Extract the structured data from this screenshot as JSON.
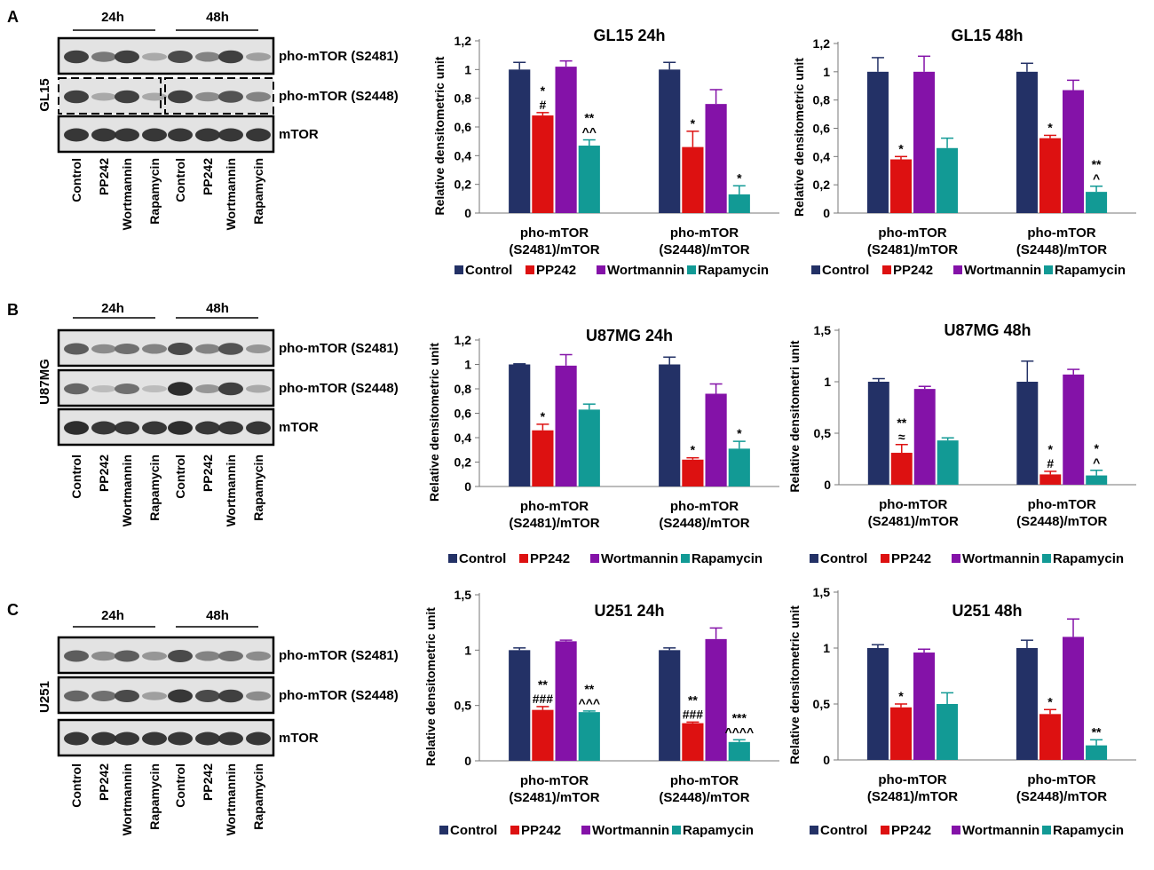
{
  "colors": {
    "Control": "#233166",
    "PP242": "#dd1111",
    "Wortmannin": "#8412a8",
    "Rapamycin": "#129a95"
  },
  "panels": [
    {
      "letter": "A",
      "cell_line": "GL15",
      "blot": {
        "times": [
          "24h",
          "48h"
        ],
        "bands": [
          "pho-mTOR (S2481)",
          "pho-mTOR (S2448)",
          "mTOR"
        ],
        "lanes": [
          "Control",
          "PP242",
          "Wortmannin",
          "Rapamycin",
          "Control",
          "PP242",
          "Wortmannin",
          "Rapamycin"
        ],
        "intensity": [
          [
            0.85,
            0.55,
            0.85,
            0.3,
            0.8,
            0.5,
            0.85,
            0.35
          ],
          [
            0.85,
            0.3,
            0.85,
            0.3,
            0.85,
            0.45,
            0.75,
            0.5
          ],
          [
            0.9,
            0.9,
            0.9,
            0.9,
            0.9,
            0.9,
            0.9,
            0.9
          ]
        ]
      }
    },
    {
      "letter": "B",
      "cell_line": "U87MG",
      "blot": {
        "times": [
          "24h",
          "48h"
        ],
        "bands": [
          "pho-mTOR (S2481)",
          "pho-mTOR (S2448)",
          "mTOR"
        ],
        "lanes": [
          "Control",
          "PP242",
          "Wortmannin",
          "Rapamycin",
          "Control",
          "PP242",
          "Wortmannin",
          "Rapamycin"
        ],
        "intensity": [
          [
            0.7,
            0.45,
            0.6,
            0.5,
            0.8,
            0.5,
            0.75,
            0.4
          ],
          [
            0.65,
            0.2,
            0.6,
            0.2,
            0.95,
            0.4,
            0.85,
            0.3
          ],
          [
            0.95,
            0.9,
            0.9,
            0.9,
            0.95,
            0.9,
            0.9,
            0.9
          ]
        ]
      }
    },
    {
      "letter": "C",
      "cell_line": "U251",
      "blot": {
        "times": [
          "24h",
          "48h"
        ],
        "bands": [
          "pho-mTOR (S2481)",
          "pho-mTOR (S2448)",
          "mTOR"
        ],
        "lanes": [
          "Control",
          "PP242",
          "Wortmannin",
          "Rapamycin",
          "Control",
          "PP242",
          "Wortmannin",
          "Rapamycin"
        ],
        "intensity": [
          [
            0.7,
            0.45,
            0.7,
            0.4,
            0.8,
            0.5,
            0.6,
            0.45
          ],
          [
            0.65,
            0.6,
            0.8,
            0.35,
            0.9,
            0.8,
            0.85,
            0.45
          ],
          [
            0.9,
            0.9,
            0.9,
            0.9,
            0.9,
            0.9,
            0.9,
            0.9
          ]
        ]
      }
    }
  ],
  "chart_data": [
    {
      "type": "bar",
      "title": "GL15 24h",
      "ylabel": "Relative densitometric unit",
      "categories": [
        "pho-mTOR\n(S2481)/mTOR",
        "pho-mTOR\n(S2448)/mTOR"
      ],
      "ylim": [
        0,
        1.2
      ],
      "ticks": [
        0,
        0.2,
        0.4,
        0.6,
        0.8,
        1,
        1.2
      ],
      "tick_labels": [
        "0",
        "0,2",
        "0,4",
        "0,6",
        "0,8",
        "1",
        "1,2"
      ],
      "series": [
        {
          "name": "Control",
          "values": [
            1.0,
            1.0
          ],
          "errors": [
            0.05,
            0.05
          ]
        },
        {
          "name": "PP242",
          "values": [
            0.68,
            0.46
          ],
          "errors": [
            0.02,
            0.11
          ]
        },
        {
          "name": "Wortmannin",
          "values": [
            1.02,
            0.76
          ],
          "errors": [
            0.04,
            0.1
          ]
        },
        {
          "name": "Rapamycin",
          "values": [
            0.47,
            0.13
          ],
          "errors": [
            0.04,
            0.06
          ]
        }
      ],
      "annotations": [
        {
          "group": 0,
          "series": 1,
          "text": [
            "*",
            "#"
          ]
        },
        {
          "group": 0,
          "series": 3,
          "text": [
            "**",
            "^^"
          ]
        },
        {
          "group": 1,
          "series": 1,
          "text": [
            "*"
          ]
        },
        {
          "group": 1,
          "series": 3,
          "text": [
            "*"
          ]
        }
      ],
      "legend": [
        "Control",
        "PP242",
        "Wortmannin",
        "Rapamycin"
      ]
    },
    {
      "type": "bar",
      "title": "GL15 48h",
      "ylabel": "Relative densitometric unit",
      "categories": [
        "pho-mTOR\n(S2481)/mTOR",
        "pho-mTOR\n(S2448)/mTOR"
      ],
      "ylim": [
        0,
        1.2
      ],
      "ticks": [
        0,
        0.2,
        0.4,
        0.6,
        0.8,
        1,
        1.2
      ],
      "tick_labels": [
        "0",
        "0,2",
        "0,4",
        "0,6",
        "0,8",
        "1",
        "1,2"
      ],
      "series": [
        {
          "name": "Control",
          "values": [
            1.0,
            1.0
          ],
          "errors": [
            0.1,
            0.06
          ]
        },
        {
          "name": "PP242",
          "values": [
            0.38,
            0.53
          ],
          "errors": [
            0.02,
            0.02
          ]
        },
        {
          "name": "Wortmannin",
          "values": [
            1.0,
            0.87
          ],
          "errors": [
            0.11,
            0.07
          ]
        },
        {
          "name": "Rapamycin",
          "values": [
            0.46,
            0.15
          ],
          "errors": [
            0.07,
            0.04
          ]
        }
      ],
      "annotations": [
        {
          "group": 0,
          "series": 1,
          "text": [
            "*"
          ]
        },
        {
          "group": 1,
          "series": 1,
          "text": [
            "*"
          ]
        },
        {
          "group": 1,
          "series": 3,
          "text": [
            "**",
            "^"
          ]
        }
      ],
      "legend": [
        "Control",
        "PP242",
        "Wortmannin",
        "Rapamycin"
      ]
    },
    {
      "type": "bar",
      "title": "U87MG 24h",
      "ylabel": "Relative densitometric unit",
      "categories": [
        "pho-mTOR\n(S2481)/mTOR",
        "pho-mTOR\n(S2448)/mTOR"
      ],
      "ylim": [
        0,
        1.2
      ],
      "ticks": [
        0,
        0.2,
        0.4,
        0.6,
        0.8,
        1,
        1.2
      ],
      "tick_labels": [
        "0",
        "0,2",
        "0,4",
        "0,6",
        "0,8",
        "1",
        "1,2"
      ],
      "series": [
        {
          "name": "Control",
          "values": [
            1.0,
            1.0
          ],
          "errors": [
            0.005,
            0.06
          ]
        },
        {
          "name": "PP242",
          "values": [
            0.46,
            0.22
          ],
          "errors": [
            0.05,
            0.015
          ]
        },
        {
          "name": "Wortmannin",
          "values": [
            0.99,
            0.76
          ],
          "errors": [
            0.09,
            0.08
          ]
        },
        {
          "name": "Rapamycin",
          "values": [
            0.63,
            0.31
          ],
          "errors": [
            0.045,
            0.06
          ]
        }
      ],
      "annotations": [
        {
          "group": 0,
          "series": 1,
          "text": [
            "*"
          ]
        },
        {
          "group": 1,
          "series": 1,
          "text": [
            "*"
          ]
        },
        {
          "group": 1,
          "series": 3,
          "text": [
            "*"
          ]
        }
      ],
      "legend": [
        "Control",
        "PP242",
        "Wortmannin",
        "Rapamycin"
      ]
    },
    {
      "type": "bar",
      "title": "U87MG 48h",
      "ylabel": "Relative densitometri unit",
      "categories": [
        "pho-mTOR\n(S2481)/mTOR",
        "pho-mTOR\n(S2448)/mTOR"
      ],
      "ylim": [
        0,
        1.5
      ],
      "ticks": [
        0,
        0.5,
        1,
        1.5
      ],
      "tick_labels": [
        "0",
        "0,5",
        "1",
        "1,5"
      ],
      "series": [
        {
          "name": "Control",
          "values": [
            1.0,
            1.0
          ],
          "errors": [
            0.03,
            0.2
          ]
        },
        {
          "name": "PP242",
          "values": [
            0.31,
            0.1
          ],
          "errors": [
            0.08,
            0.03
          ]
        },
        {
          "name": "Wortmannin",
          "values": [
            0.93,
            1.07
          ],
          "errors": [
            0.025,
            0.05
          ]
        },
        {
          "name": "Rapamycin",
          "values": [
            0.43,
            0.09
          ],
          "errors": [
            0.025,
            0.05
          ]
        }
      ],
      "annotations": [
        {
          "group": 0,
          "series": 1,
          "text": [
            "**",
            "≈"
          ]
        },
        {
          "group": 1,
          "series": 1,
          "text": [
            "*",
            "#"
          ]
        },
        {
          "group": 1,
          "series": 3,
          "text": [
            "*",
            "^"
          ]
        }
      ],
      "legend": [
        "Control",
        "PP242",
        "Wortmannin",
        "Rapamycin"
      ]
    },
    {
      "type": "bar",
      "title": "U251 24h",
      "ylabel": "Relative densitometric unit",
      "categories": [
        "pho-mTOR\n(S2481)/mTOR",
        "pho-mTOR\n(S2448)/mTOR"
      ],
      "ylim": [
        0,
        1.5
      ],
      "ticks": [
        0,
        0.5,
        1,
        1.5
      ],
      "tick_labels": [
        "0",
        "0,5",
        "1",
        "1,5"
      ],
      "series": [
        {
          "name": "Control",
          "values": [
            1.0,
            1.0
          ],
          "errors": [
            0.02,
            0.02
          ]
        },
        {
          "name": "PP242",
          "values": [
            0.46,
            0.34
          ],
          "errors": [
            0.03,
            0.01
          ]
        },
        {
          "name": "Wortmannin",
          "values": [
            1.08,
            1.1
          ],
          "errors": [
            0.01,
            0.1
          ]
        },
        {
          "name": "Rapamycin",
          "values": [
            0.44,
            0.17
          ],
          "errors": [
            0.01,
            0.02
          ]
        }
      ],
      "annotations": [
        {
          "group": 0,
          "series": 1,
          "text": [
            "**",
            "###"
          ]
        },
        {
          "group": 0,
          "series": 3,
          "text": [
            "**",
            "^^^"
          ]
        },
        {
          "group": 1,
          "series": 1,
          "text": [
            "**",
            "###"
          ]
        },
        {
          "group": 1,
          "series": 3,
          "text": [
            "***",
            "^^^^"
          ]
        }
      ],
      "legend": [
        "Control",
        "PP242",
        "Wortmannin",
        "Rapamycin"
      ]
    },
    {
      "type": "bar",
      "title": "U251 48h",
      "ylabel": "Relative densitometric unit",
      "categories": [
        "pho-mTOR\n(S2481)/mTOR",
        "pho-mTOR\n(S2448)/mTOR"
      ],
      "ylim": [
        0,
        1.5
      ],
      "ticks": [
        0,
        0.5,
        1,
        1.5
      ],
      "tick_labels": [
        "0",
        "0,5",
        "1",
        "1,5"
      ],
      "series": [
        {
          "name": "Control",
          "values": [
            1.0,
            1.0
          ],
          "errors": [
            0.03,
            0.07
          ]
        },
        {
          "name": "PP242",
          "values": [
            0.47,
            0.41
          ],
          "errors": [
            0.03,
            0.04
          ]
        },
        {
          "name": "Wortmannin",
          "values": [
            0.96,
            1.1
          ],
          "errors": [
            0.03,
            0.16
          ]
        },
        {
          "name": "Rapamycin",
          "values": [
            0.5,
            0.13
          ],
          "errors": [
            0.1,
            0.05
          ]
        }
      ],
      "annotations": [
        {
          "group": 0,
          "series": 1,
          "text": [
            "*"
          ]
        },
        {
          "group": 1,
          "series": 1,
          "text": [
            "*"
          ]
        },
        {
          "group": 1,
          "series": 3,
          "text": [
            "**"
          ]
        }
      ],
      "legend": [
        "Control",
        "PP242",
        "Wortmannin",
        "Rapamycin"
      ]
    }
  ]
}
